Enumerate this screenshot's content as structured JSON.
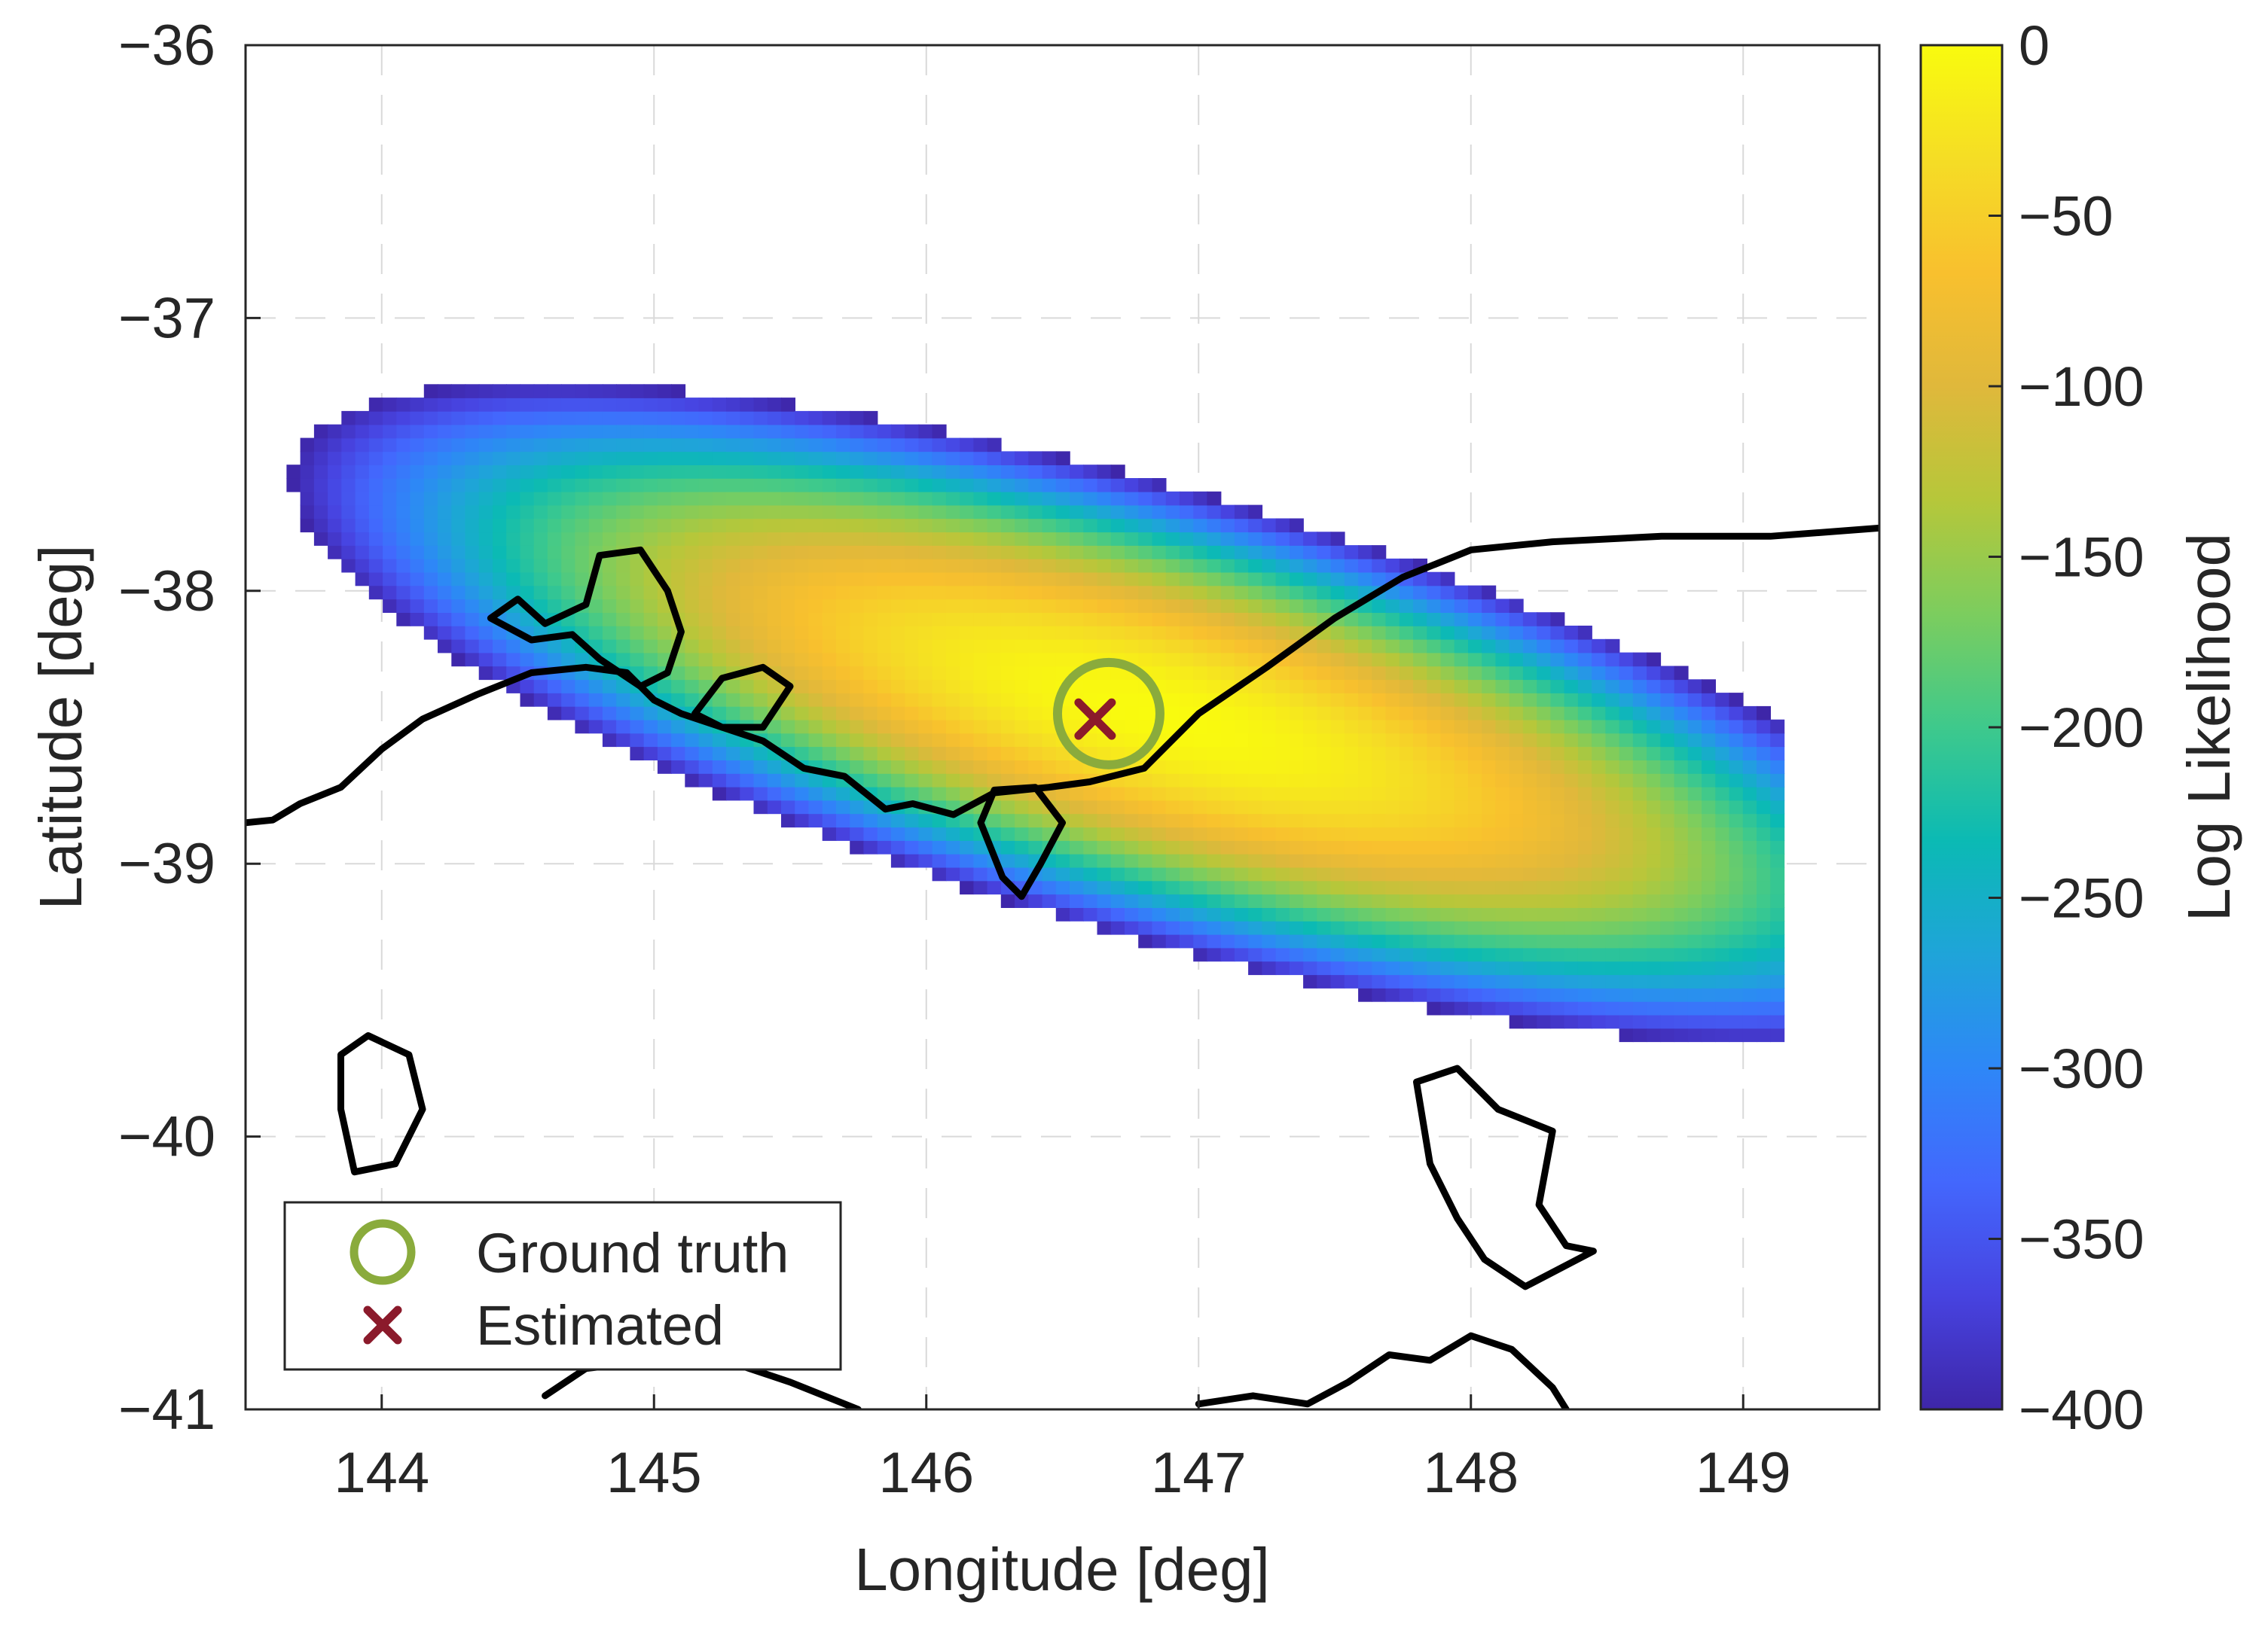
{
  "chart_data": {
    "type": "heatmap",
    "xlabel": "Longitude [deg]",
    "ylabel": "Latitude [deg]",
    "xlim": [
      143.5,
      149.5
    ],
    "ylim": [
      -41,
      -36
    ],
    "xticks": [
      144,
      145,
      146,
      147,
      148,
      149
    ],
    "yticks": [
      -36,
      -37,
      -38,
      -39,
      -40,
      -41
    ],
    "grid": true,
    "colorbar": {
      "label": "Log Likelihood",
      "range": [
        -400,
        0
      ],
      "ticks": [
        0,
        -50,
        -100,
        -150,
        -200,
        -250,
        -300,
        -350,
        -400
      ],
      "colormap": [
        "#3e26a8",
        "#4743e0",
        "#4367fd",
        "#2e87f7",
        "#1fa4d9",
        "#0bbab4",
        "#3ec98c",
        "#7ccd5e",
        "#b6c73a",
        "#e0b83b",
        "#f8c02e",
        "#f5dd25",
        "#f9fb0e"
      ]
    },
    "likelihood_field": {
      "peak_lon": 146.85,
      "peak_lat": -38.45,
      "peak_value": 0,
      "cutoff_value": -400,
      "extent_lon": [
        143.6,
        149.15
      ],
      "extent_lat": [
        -39.75,
        -36.8
      ],
      "orientation": "elongated, tilted from upper-left to lower-right"
    },
    "markers": [
      {
        "label": "Ground truth",
        "lon": 146.67,
        "lat": -38.45,
        "shape": "circle",
        "color": "#8aab3c"
      },
      {
        "label": "Estimated",
        "lon": 146.62,
        "lat": -38.47,
        "shape": "x",
        "color": "#8b1a2b"
      }
    ],
    "legend": {
      "location": "bottom-left",
      "entries": [
        "Ground truth",
        "Estimated"
      ]
    },
    "coastlines": {
      "color": "#000000",
      "lines": [
        [
          [
            143.5,
            -38.85
          ],
          [
            143.6,
            -38.84
          ],
          [
            143.7,
            -38.78
          ],
          [
            143.85,
            -38.72
          ],
          [
            144.0,
            -38.58
          ],
          [
            144.15,
            -38.47
          ],
          [
            144.35,
            -38.38
          ],
          [
            144.55,
            -38.3
          ],
          [
            144.75,
            -38.28
          ],
          [
            144.9,
            -38.3
          ],
          [
            145.0,
            -38.4
          ],
          [
            145.1,
            -38.45
          ],
          [
            145.25,
            -38.5
          ],
          [
            145.4,
            -38.55
          ],
          [
            145.55,
            -38.65
          ],
          [
            145.7,
            -38.68
          ],
          [
            145.85,
            -38.8
          ],
          [
            145.95,
            -38.78
          ],
          [
            146.1,
            -38.82
          ],
          [
            146.25,
            -38.74
          ],
          [
            146.45,
            -38.72
          ],
          [
            146.6,
            -38.7
          ],
          [
            146.8,
            -38.65
          ],
          [
            147.0,
            -38.45
          ],
          [
            147.25,
            -38.28
          ],
          [
            147.5,
            -38.1
          ],
          [
            147.75,
            -37.95
          ],
          [
            148.0,
            -37.85
          ],
          [
            148.3,
            -37.82
          ],
          [
            148.7,
            -37.8
          ],
          [
            149.1,
            -37.8
          ],
          [
            149.5,
            -37.77
          ]
        ],
        [
          [
            144.4,
            -38.1
          ],
          [
            144.5,
            -38.03
          ],
          [
            144.6,
            -38.12
          ],
          [
            144.75,
            -38.05
          ],
          [
            144.8,
            -37.87
          ],
          [
            144.95,
            -37.85
          ],
          [
            145.05,
            -38.0
          ],
          [
            145.1,
            -38.15
          ],
          [
            145.05,
            -38.3
          ],
          [
            144.95,
            -38.35
          ],
          [
            144.8,
            -38.25
          ],
          [
            144.7,
            -38.16
          ],
          [
            144.55,
            -38.18
          ],
          [
            144.4,
            -38.1
          ]
        ],
        [
          [
            145.15,
            -38.45
          ],
          [
            145.25,
            -38.32
          ],
          [
            145.4,
            -38.28
          ],
          [
            145.5,
            -38.35
          ],
          [
            145.4,
            -38.5
          ],
          [
            145.25,
            -38.5
          ],
          [
            145.15,
            -38.45
          ]
        ],
        [
          [
            146.2,
            -38.85
          ],
          [
            146.25,
            -38.73
          ],
          [
            146.4,
            -38.72
          ],
          [
            146.5,
            -38.85
          ],
          [
            146.42,
            -39.0
          ],
          [
            146.35,
            -39.12
          ],
          [
            146.28,
            -39.05
          ],
          [
            146.2,
            -38.85
          ]
        ],
        [
          [
            143.85,
            -39.7
          ],
          [
            143.95,
            -39.63
          ],
          [
            144.1,
            -39.7
          ],
          [
            144.15,
            -39.9
          ],
          [
            144.05,
            -40.1
          ],
          [
            143.9,
            -40.13
          ],
          [
            143.85,
            -39.9
          ],
          [
            143.85,
            -39.7
          ]
        ],
        [
          [
            147.8,
            -39.8
          ],
          [
            147.95,
            -39.75
          ],
          [
            148.1,
            -39.9
          ],
          [
            148.3,
            -39.98
          ],
          [
            148.25,
            -40.25
          ],
          [
            148.35,
            -40.4
          ],
          [
            148.45,
            -40.42
          ],
          [
            148.2,
            -40.55
          ],
          [
            148.05,
            -40.45
          ],
          [
            147.95,
            -40.3
          ],
          [
            147.85,
            -40.1
          ],
          [
            147.8,
            -39.8
          ]
        ],
        [
          [
            144.6,
            -40.95
          ],
          [
            144.75,
            -40.85
          ],
          [
            145.2,
            -40.8
          ],
          [
            145.5,
            -40.9
          ],
          [
            145.75,
            -41.0
          ]
        ],
        [
          [
            147.0,
            -40.98
          ],
          [
            147.2,
            -40.95
          ],
          [
            147.4,
            -40.98
          ],
          [
            147.55,
            -40.9
          ],
          [
            147.7,
            -40.8
          ],
          [
            147.85,
            -40.82
          ],
          [
            148.0,
            -40.73
          ],
          [
            148.15,
            -40.78
          ],
          [
            148.3,
            -40.92
          ],
          [
            148.35,
            -41.0
          ]
        ]
      ]
    }
  }
}
